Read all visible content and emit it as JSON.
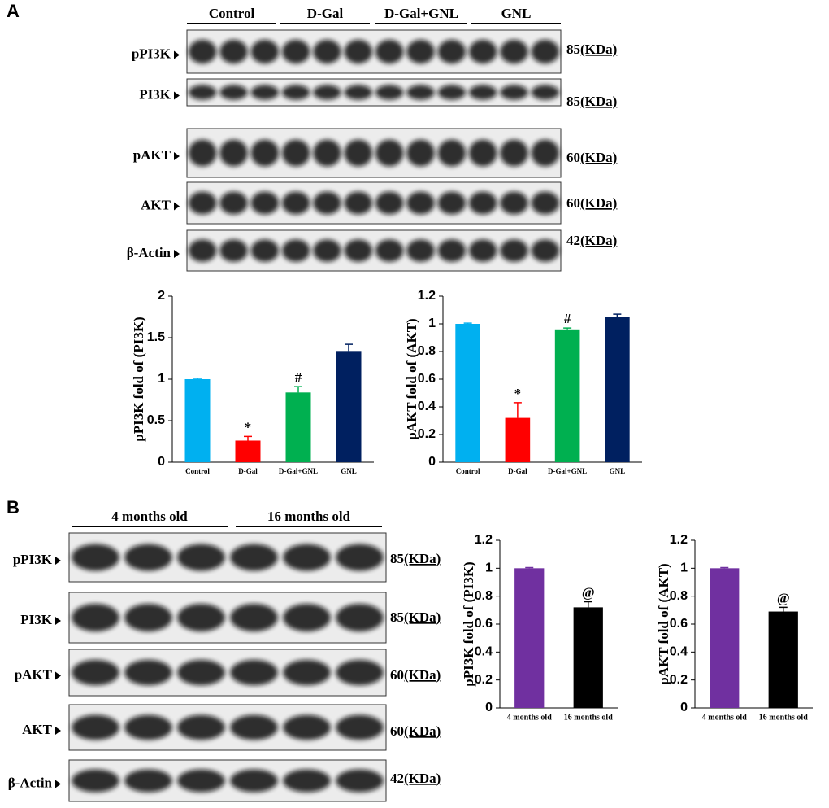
{
  "panels": [
    {
      "label": "A",
      "groups": [
        "Control",
        "D-Gal",
        "D-Gal+GNL",
        "GNL"
      ],
      "blots": [
        {
          "name": "pPI3K",
          "size": 85,
          "unit": "(KDa)"
        },
        {
          "name": "PI3K",
          "size": 85,
          "unit": "(KDa)"
        },
        {
          "name": "pAKT",
          "size": 60,
          "unit": "(KDa)"
        },
        {
          "name": "AKT",
          "size": 60,
          "unit": "(KDa)"
        },
        {
          "name": "β-Actin",
          "size": 42,
          "unit": "(KDa)"
        }
      ]
    },
    {
      "label": "B",
      "groups": [
        "4 months old",
        "16 months old"
      ],
      "blots": [
        {
          "name": "pPI3K",
          "size": 85,
          "unit": "(KDa)"
        },
        {
          "name": "PI3K",
          "size": 85,
          "unit": "(KDa)"
        },
        {
          "name": "pAKT",
          "size": 60,
          "unit": "(KDa)"
        },
        {
          "name": "AKT",
          "size": 60,
          "unit": "(KDa)"
        },
        {
          "name": "β-Actin",
          "size": 42,
          "unit": "(KDa)"
        }
      ]
    }
  ],
  "chart_data": [
    {
      "type": "bar",
      "y_label": "pPI3K fold of (PI3K)",
      "categories": [
        "Control",
        "D-Gal",
        "D-Gal+GNL",
        "GNL"
      ],
      "values": [
        1.0,
        0.26,
        0.84,
        1.34
      ],
      "errors": [
        0.01,
        0.05,
        0.07,
        0.08
      ],
      "colors": [
        "#00b0f0",
        "#ff0000",
        "#00b050",
        "#002060"
      ],
      "markers": [
        null,
        "*",
        "#",
        null
      ],
      "ylim": [
        0,
        2
      ],
      "yticks": [
        0,
        0.5,
        1,
        1.5,
        2
      ]
    },
    {
      "type": "bar",
      "y_label": "pAKT fold of (AKT)",
      "categories": [
        "Control",
        "D-Gal",
        "D-Gal+GNL",
        "GNL"
      ],
      "values": [
        1.0,
        0.32,
        0.96,
        1.05
      ],
      "errors": [
        0.005,
        0.11,
        0.01,
        0.02
      ],
      "colors": [
        "#00b0f0",
        "#ff0000",
        "#00b050",
        "#002060"
      ],
      "markers": [
        null,
        "*",
        "#",
        null
      ],
      "ylim": [
        0,
        1.2
      ],
      "yticks": [
        0,
        0.2,
        0.4,
        0.6,
        0.8,
        1,
        1.2
      ]
    },
    {
      "type": "bar",
      "y_label": "pPI3K fold of (PI3K)",
      "categories": [
        "4 months old",
        "16 months old"
      ],
      "values": [
        1.0,
        0.72
      ],
      "errors": [
        0.005,
        0.04
      ],
      "colors": [
        "#7030a0",
        "#000000"
      ],
      "markers": [
        null,
        "@"
      ],
      "ylim": [
        0,
        1.2
      ],
      "yticks": [
        0,
        0.2,
        0.4,
        0.6,
        0.8,
        1,
        1.2
      ]
    },
    {
      "type": "bar",
      "y_label": "pAKT fold of (AKT)",
      "categories": [
        "4 months old",
        "16 months old"
      ],
      "values": [
        1.0,
        0.69
      ],
      "errors": [
        0.005,
        0.03
      ],
      "colors": [
        "#7030a0",
        "#000000"
      ],
      "markers": [
        null,
        "@"
      ],
      "ylim": [
        0,
        1.2
      ],
      "yticks": [
        0,
        0.2,
        0.4,
        0.6,
        0.8,
        1,
        1.2
      ]
    }
  ]
}
